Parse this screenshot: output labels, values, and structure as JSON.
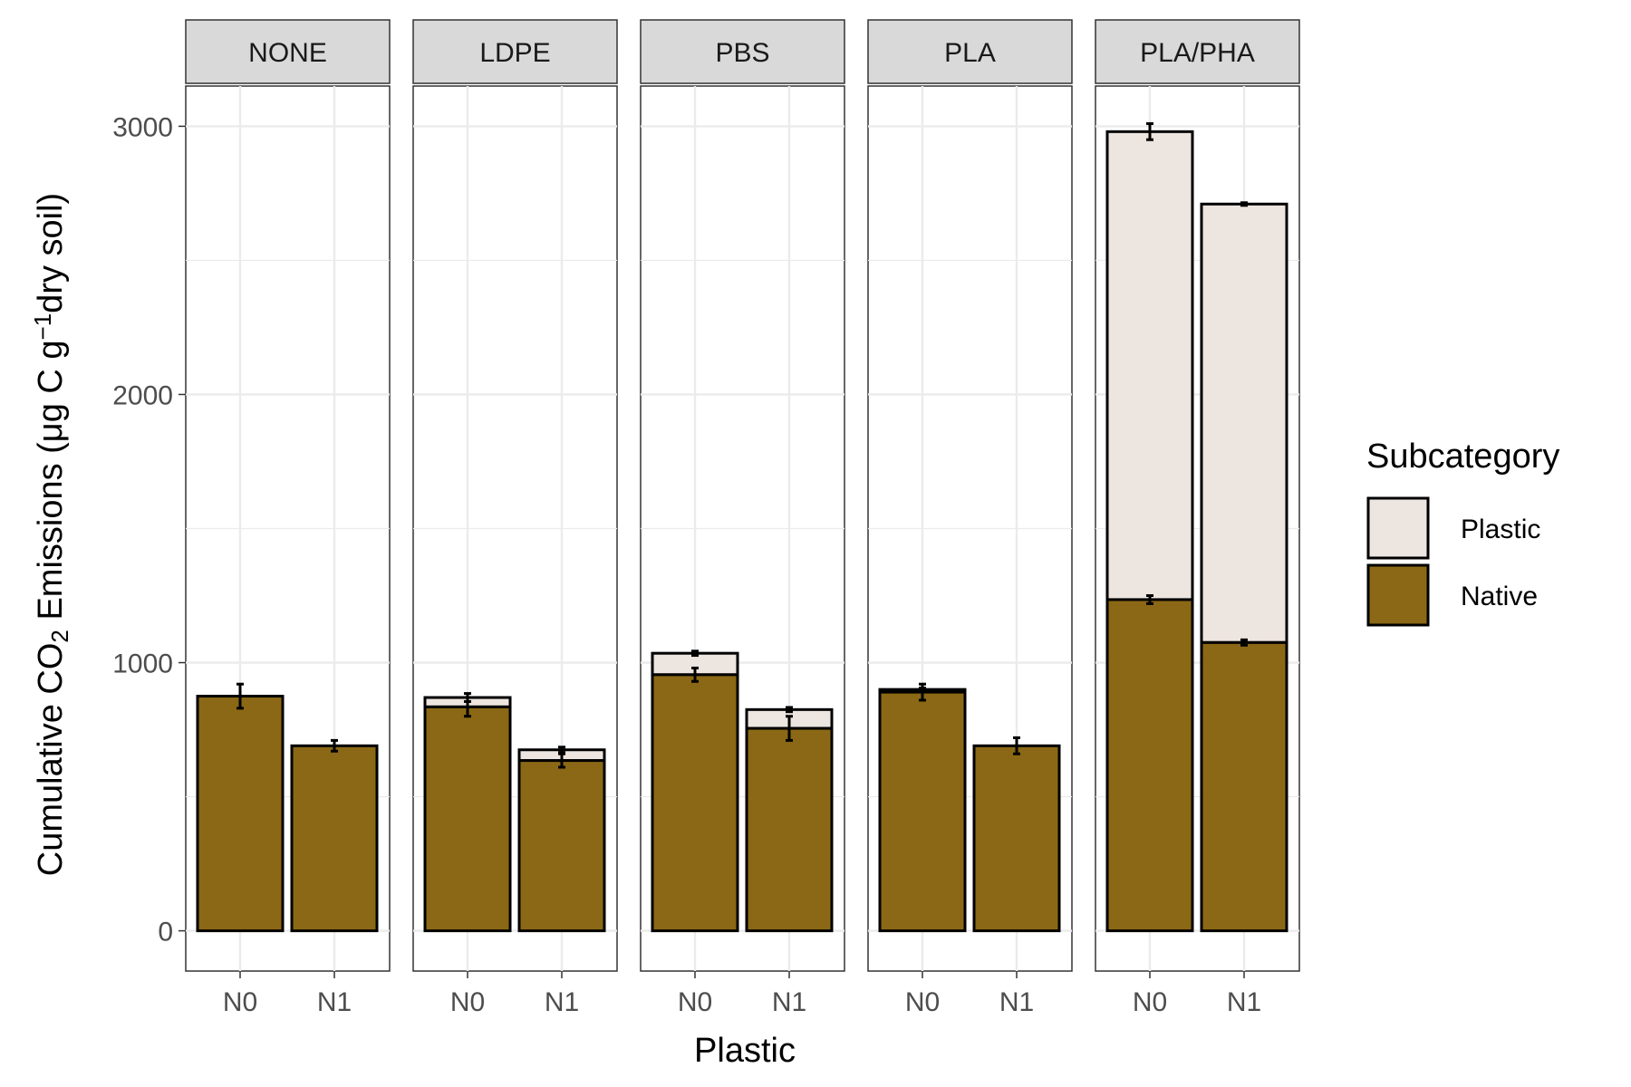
{
  "chart_data": {
    "type": "bar",
    "stacked": true,
    "facet_by": "Plastic",
    "facets": [
      "NONE",
      "LDPE",
      "PBS",
      "PLA",
      "PLA/PHA"
    ],
    "categories": [
      "N0",
      "N1"
    ],
    "xlabel": "Plastic",
    "ylabel": {
      "prefix": "Cumulative CO",
      "sub": "2",
      "middle": " Emissions (μg C g",
      "sup": "−1",
      "suffix": "dry soil)"
    },
    "ylim": [
      -150,
      3150
    ],
    "yticks": [
      0,
      1000,
      2000,
      3000
    ],
    "grid": true,
    "legend": {
      "title": "Subcategory",
      "position": "right",
      "entries": [
        {
          "name": "Plastic",
          "color": "#ede5df"
        },
        {
          "name": "Native",
          "color": "#8b6815"
        }
      ]
    },
    "series": [
      {
        "name": "Native",
        "color": "#8b6815",
        "values": [
          [
            875,
            690
          ],
          [
            835,
            635
          ],
          [
            955,
            755
          ],
          [
            890,
            690
          ],
          [
            1235,
            1075
          ]
        ],
        "errors": [
          [
            45,
            20
          ],
          [
            35,
            25
          ],
          [
            25,
            45
          ],
          [
            30,
            30
          ],
          [
            15,
            10
          ]
        ]
      },
      {
        "name": "Plastic",
        "color": "#ede5df",
        "values": [
          [
            0,
            0
          ],
          [
            35,
            40
          ],
          [
            80,
            70
          ],
          [
            10,
            0
          ],
          [
            1745,
            1635
          ]
        ],
        "errors": [
          [
            0,
            0
          ],
          [
            15,
            10
          ],
          [
            8,
            8
          ],
          [
            0,
            0
          ],
          [
            30,
            5
          ]
        ]
      }
    ]
  }
}
